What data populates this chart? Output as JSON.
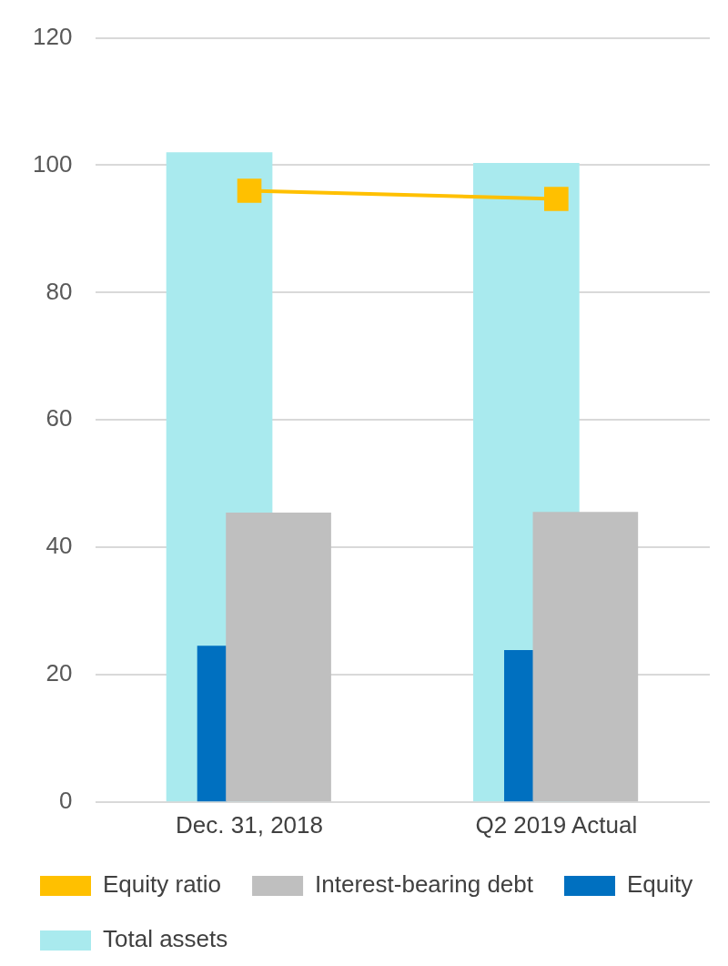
{
  "chart_data": {
    "type": "bar",
    "categories": [
      "Dec. 31, 2018",
      "Q2 2019 Actual"
    ],
    "series": [
      {
        "name": "Total assets",
        "color": "#a9eaee",
        "values": [
          102,
          100.3
        ]
      },
      {
        "name": "Equity",
        "color": "#0070c0",
        "values": [
          24.5,
          23.8
        ]
      },
      {
        "name": "Interest-bearing debt",
        "color": "#bfbfbf",
        "values": [
          45.4,
          45.5
        ]
      },
      {
        "name": "Equity ratio",
        "type": "line",
        "color": "#ffc000",
        "values": [
          96,
          94.7
        ],
        "marker": "square",
        "line_style": "solid"
      }
    ],
    "ylim": [
      0,
      120
    ],
    "yticks": [
      0,
      20,
      40,
      60,
      80,
      100,
      120
    ],
    "grid": "y",
    "legend": "bottom"
  }
}
